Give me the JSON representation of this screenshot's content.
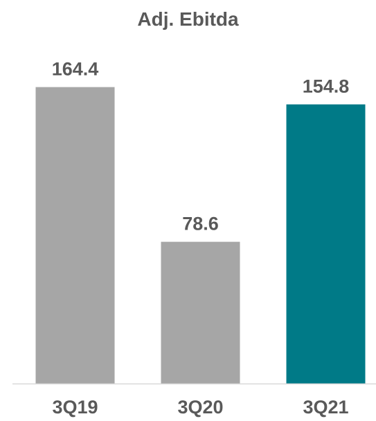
{
  "chart_data": {
    "type": "bar",
    "title": "Adj. Ebitda",
    "categories": [
      "3Q19",
      "3Q20",
      "3Q21"
    ],
    "values": [
      164.4,
      78.6,
      154.8
    ],
    "data_labels": [
      "164.4",
      "78.6",
      "154.8"
    ],
    "bar_colors": [
      "#A6A6A6",
      "#A6A6A6",
      "#007A87"
    ],
    "ylim": [
      0,
      180
    ],
    "grid": false,
    "legend": "none",
    "xlabel": "",
    "ylabel": ""
  },
  "colors": {
    "text": "#595959",
    "axis": "#D9D9D9"
  }
}
